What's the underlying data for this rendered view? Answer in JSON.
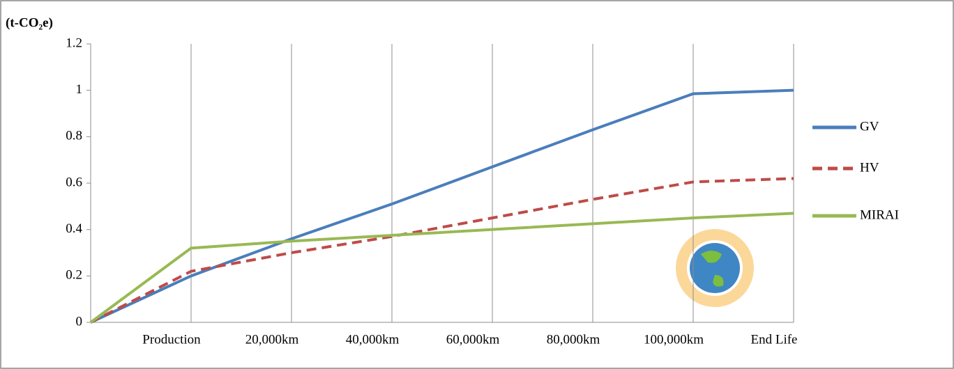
{
  "chart_data": {
    "type": "line",
    "y_axis_label": "(t-CO₂e)",
    "categories": [
      null,
      "Production",
      "20,000km",
      "40,000km",
      "60,000km",
      "80,000km",
      "100,000km",
      "End Life"
    ],
    "series": [
      {
        "name": "GV",
        "color": "#4a7ebb",
        "linestyle": "solid",
        "values": [
          0,
          0.2,
          0.36,
          0.51,
          0.67,
          0.83,
          0.985,
          1.0
        ]
      },
      {
        "name": "HV",
        "color": "#be4b48",
        "linestyle": "dashed",
        "values": [
          0,
          0.22,
          0.3,
          0.37,
          0.45,
          0.53,
          0.605,
          0.62
        ]
      },
      {
        "name": "MIRAI",
        "color": "#98b954",
        "linestyle": "solid",
        "values": [
          0,
          0.32,
          0.35,
          0.375,
          0.4,
          0.425,
          0.45,
          0.47
        ]
      }
    ],
    "ylim": [
      0,
      1.2
    ],
    "yticks": [
      0,
      0.2,
      0.4,
      0.6,
      0.8,
      1,
      1.2
    ],
    "grid": "vertical",
    "legend": "right"
  }
}
